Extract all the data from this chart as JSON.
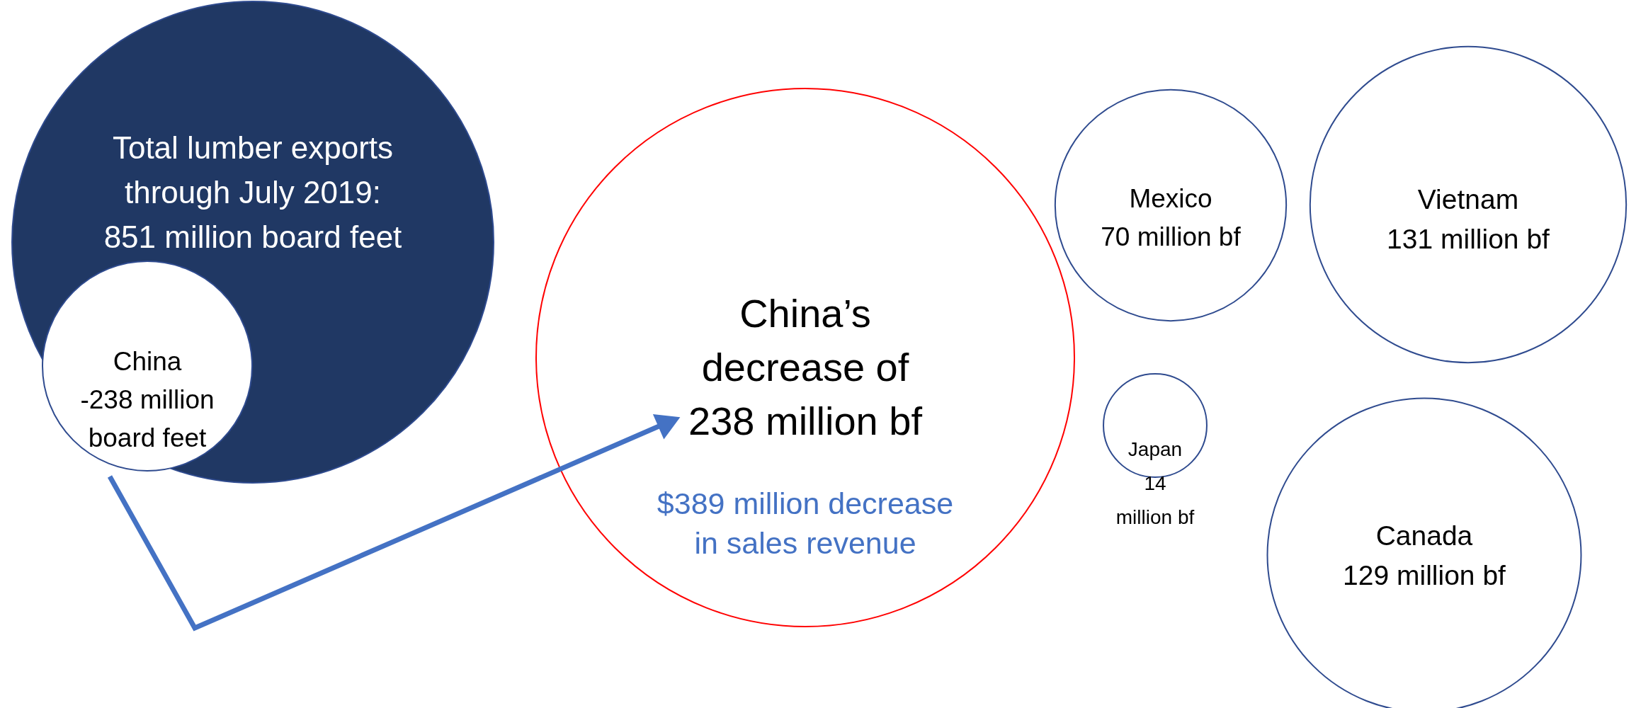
{
  "chart_data": {
    "type": "other",
    "categories": [
      "Mexico",
      "Vietnam",
      "Japan",
      "Canada"
    ],
    "values": [
      70,
      131,
      14,
      129
    ],
    "value_labels": [
      "70 million bf",
      "131 million bf",
      "14 million bf",
      "129 million bf"
    ],
    "annotations": [
      "Total lumber exports\nthrough July 2019:\n851 million board feet",
      "China\n-238 million\nboard feet",
      "China’s\ndecrease of\n238 million bf",
      "$389 million decrease\nin sales revenue"
    ]
  }
}
